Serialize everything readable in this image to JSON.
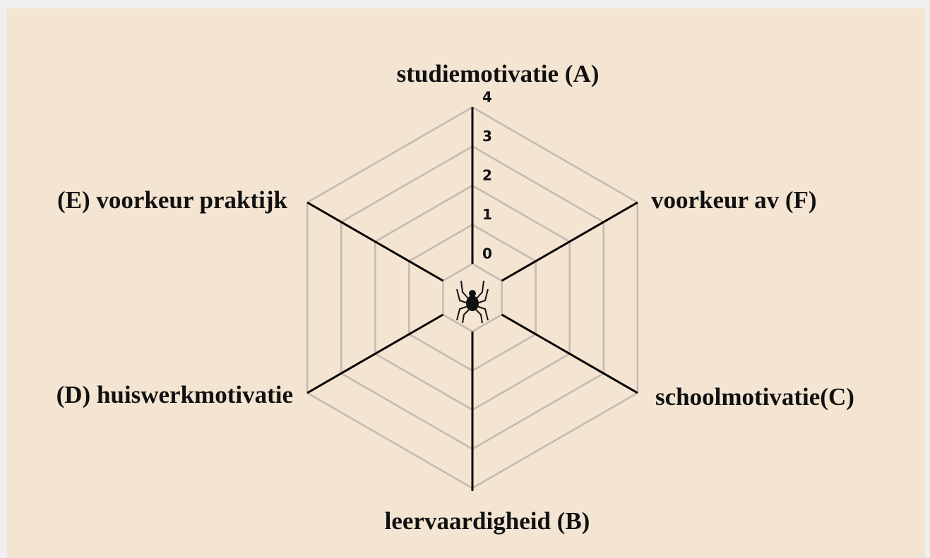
{
  "chart_data": {
    "type": "radar",
    "title": null,
    "categories": [
      "studiemotivatie (A)",
      "voorkeur av (F)",
      "schoolmotivatie(C)",
      "leervaardigheid (B)",
      "(D) huiswerkmotivatie",
      "(E) voorkeur praktijk"
    ],
    "ylim": [
      0,
      4
    ],
    "yticks": [
      0,
      1,
      2,
      3,
      4
    ],
    "grid": true,
    "grid_color": "#c4bab0",
    "axis_color": "#000000"
  }
}
